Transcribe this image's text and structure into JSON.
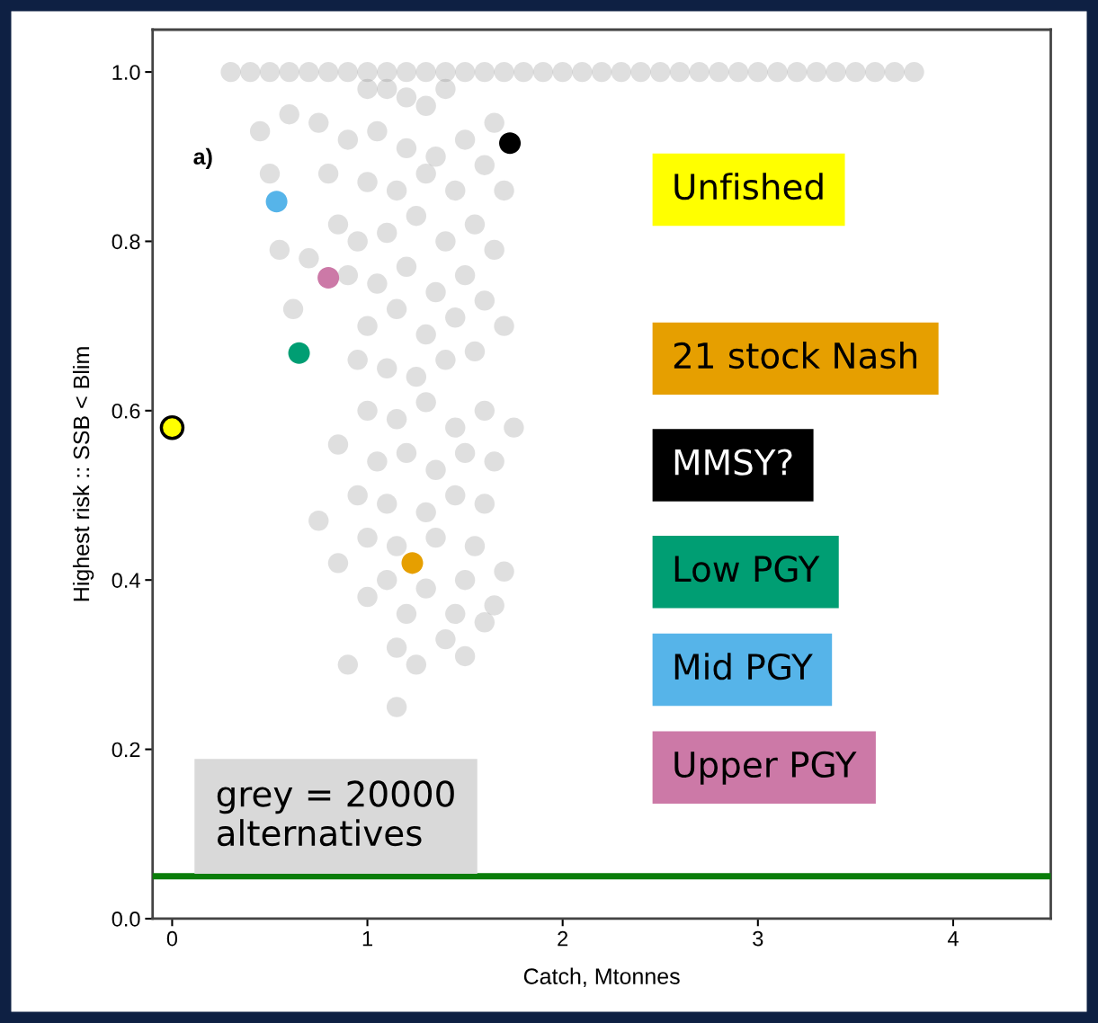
{
  "chart_data": {
    "type": "scatter",
    "xlabel": "Catch, Mtonnes",
    "ylabel": "Highest risk :: SSB < Blim",
    "xlim": [
      -0.1,
      4.5
    ],
    "xticks": [
      0,
      1,
      2,
      3,
      4
    ],
    "ylim": [
      0.0,
      1.05
    ],
    "yticks": [
      {
        "value": 0,
        "label": "0.0"
      },
      0.2,
      0.4,
      0.6,
      0.8,
      {
        "value": 1,
        "label": "1.0"
      }
    ],
    "grid": false,
    "legend": "right",
    "marker": "circle",
    "annotations": [
      "a)",
      "grey = 20000\nalternatives"
    ],
    "ref_lines": [
      {
        "axis": "y",
        "value": 0.05,
        "label": null,
        "color": "#0a7d0a"
      }
    ],
    "series": [
      {
        "color": "#808080",
        "x": [
          0.3,
          0.4,
          0.5,
          0.6,
          0.7,
          0.8,
          0.9,
          1.0,
          1.1,
          1.2,
          1.3,
          1.4,
          1.5,
          1.6,
          1.7,
          1.8,
          1.9,
          2.0,
          2.1,
          2.2,
          2.3,
          2.4,
          2.5,
          2.6,
          2.7,
          2.8,
          2.9,
          3.0,
          3.1,
          3.2,
          3.3,
          3.4,
          3.5,
          3.6,
          3.7,
          3.8,
          1.0,
          1.2,
          1.4,
          1.3,
          1.1,
          0.45,
          0.6,
          0.75,
          0.9,
          1.05,
          1.2,
          1.35,
          1.5,
          1.65,
          0.8,
          1.0,
          1.15,
          1.3,
          1.45,
          1.6,
          0.85,
          0.95,
          1.1,
          1.25,
          1.4,
          1.55,
          1.7,
          0.7,
          0.9,
          1.05,
          1.2,
          1.35,
          1.5,
          1.65,
          1.0,
          1.15,
          1.3,
          1.45,
          1.6,
          0.95,
          1.1,
          1.25,
          1.4,
          1.55,
          1.7,
          1.0,
          1.15,
          1.3,
          1.45,
          1.6,
          1.75,
          0.85,
          1.05,
          1.2,
          1.35,
          1.5,
          1.65,
          0.95,
          1.1,
          1.3,
          1.45,
          1.6,
          1.0,
          1.15,
          1.35,
          1.55,
          1.1,
          1.3,
          1.5,
          1.7,
          1.0,
          1.2,
          1.45,
          1.65,
          1.15,
          1.4,
          1.6,
          0.85,
          0.75,
          0.9,
          1.25,
          1.5,
          1.15,
          0.5,
          0.55,
          0.62
        ],
        "values": [
          1.0,
          1.0,
          1.0,
          1.0,
          1.0,
          1.0,
          1.0,
          1.0,
          1.0,
          1.0,
          1.0,
          1.0,
          1.0,
          1.0,
          1.0,
          1.0,
          1.0,
          1.0,
          1.0,
          1.0,
          1.0,
          1.0,
          1.0,
          1.0,
          1.0,
          1.0,
          1.0,
          1.0,
          1.0,
          1.0,
          1.0,
          1.0,
          1.0,
          1.0,
          1.0,
          1.0,
          0.98,
          0.97,
          0.98,
          0.96,
          0.98,
          0.93,
          0.95,
          0.94,
          0.92,
          0.93,
          0.91,
          0.9,
          0.92,
          0.94,
          0.88,
          0.87,
          0.86,
          0.88,
          0.86,
          0.89,
          0.82,
          0.8,
          0.81,
          0.83,
          0.8,
          0.82,
          0.86,
          0.78,
          0.76,
          0.75,
          0.77,
          0.74,
          0.76,
          0.79,
          0.7,
          0.72,
          0.69,
          0.71,
          0.73,
          0.66,
          0.65,
          0.64,
          0.66,
          0.67,
          0.7,
          0.6,
          0.59,
          0.61,
          0.58,
          0.6,
          0.58,
          0.56,
          0.54,
          0.55,
          0.53,
          0.55,
          0.54,
          0.5,
          0.49,
          0.48,
          0.5,
          0.49,
          0.45,
          0.44,
          0.45,
          0.44,
          0.4,
          0.39,
          0.4,
          0.41,
          0.38,
          0.36,
          0.36,
          0.37,
          0.32,
          0.33,
          0.35,
          0.42,
          0.47,
          0.3,
          0.3,
          0.31,
          0.25,
          0.88,
          0.79,
          0.72
        ]
      },
      {
        "name": "Unfished",
        "color": "#ffff00",
        "x": [
          0.0
        ],
        "values": [
          0.58
        ]
      },
      {
        "name": "21 stock Nash",
        "color": "#e69f00",
        "x": [
          1.23
        ],
        "values": [
          0.42
        ]
      },
      {
        "name": "MMSY?",
        "color": "#000000",
        "x": [
          1.73
        ],
        "values": [
          0.916
        ]
      },
      {
        "name": "Low PGY",
        "color": "#009e73",
        "x": [
          0.65
        ],
        "values": [
          0.668
        ]
      },
      {
        "name": "Mid PGY",
        "color": "#56b4e9",
        "x": [
          0.535
        ],
        "values": [
          0.847
        ]
      },
      {
        "name": "Upper PGY",
        "color": "#cc79a7",
        "x": [
          0.8
        ],
        "values": [
          0.757
        ]
      }
    ]
  }
}
